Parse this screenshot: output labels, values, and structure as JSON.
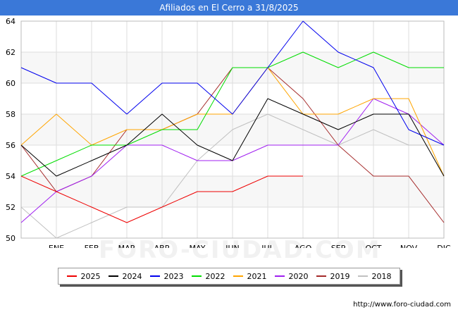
{
  "page": {
    "title": "Afiliados en El Cerro a 31/8/2025",
    "footer_url": "http://www.foro-ciudad.com",
    "watermark": "FORO-CIUDAD.COM"
  },
  "chart_data": {
    "type": "line",
    "title": "Afiliados en El Cerro a 31/8/2025",
    "xlabel": "",
    "ylabel": "",
    "categories": [
      "",
      "ENE",
      "FEB",
      "MAR",
      "ABR",
      "MAY",
      "JUN",
      "JUL",
      "AGO",
      "SEP",
      "OCT",
      "NOV",
      "DIC"
    ],
    "ylim": [
      50,
      64
    ],
    "yticks": [
      50,
      52,
      54,
      56,
      58,
      60,
      62,
      64
    ],
    "grid": true,
    "legend_position": "bottom",
    "series": [
      {
        "name": "2018",
        "color": "#c0c0c0",
        "values": [
          52,
          50,
          51,
          52,
          52,
          55,
          57,
          58,
          57,
          56,
          57,
          56,
          56
        ]
      },
      {
        "name": "2019",
        "color": "#a52a2a",
        "values": [
          56,
          53,
          54,
          57,
          57,
          58,
          61,
          61,
          59,
          56,
          54,
          54,
          51
        ]
      },
      {
        "name": "2020",
        "color": "#a020f0",
        "values": [
          51,
          53,
          54,
          56,
          56,
          55,
          55,
          56,
          56,
          56,
          59,
          58,
          56
        ]
      },
      {
        "name": "2021",
        "color": "#ffa500",
        "values": [
          56,
          58,
          56,
          57,
          57,
          58,
          58,
          61,
          58,
          58,
          59,
          59,
          54
        ]
      },
      {
        "name": "2022",
        "color": "#00dd00",
        "values": [
          54,
          55,
          56,
          56,
          57,
          57,
          61,
          61,
          62,
          61,
          62,
          61,
          61
        ]
      },
      {
        "name": "2023",
        "color": "#0000ee",
        "values": [
          61,
          60,
          60,
          58,
          60,
          60,
          58,
          61,
          64,
          62,
          61,
          57,
          56
        ]
      },
      {
        "name": "2024",
        "color": "#000000",
        "values": [
          56,
          54,
          55,
          56,
          58,
          56,
          55,
          59,
          58,
          57,
          58,
          58,
          54
        ]
      },
      {
        "name": "2025",
        "color": "#ee0000",
        "values": [
          54,
          53,
          52,
          51,
          52,
          53,
          53,
          54,
          54,
          null,
          null,
          null,
          null
        ]
      }
    ],
    "legend_order": [
      "2025",
      "2024",
      "2023",
      "2022",
      "2021",
      "2020",
      "2019",
      "2018"
    ]
  }
}
